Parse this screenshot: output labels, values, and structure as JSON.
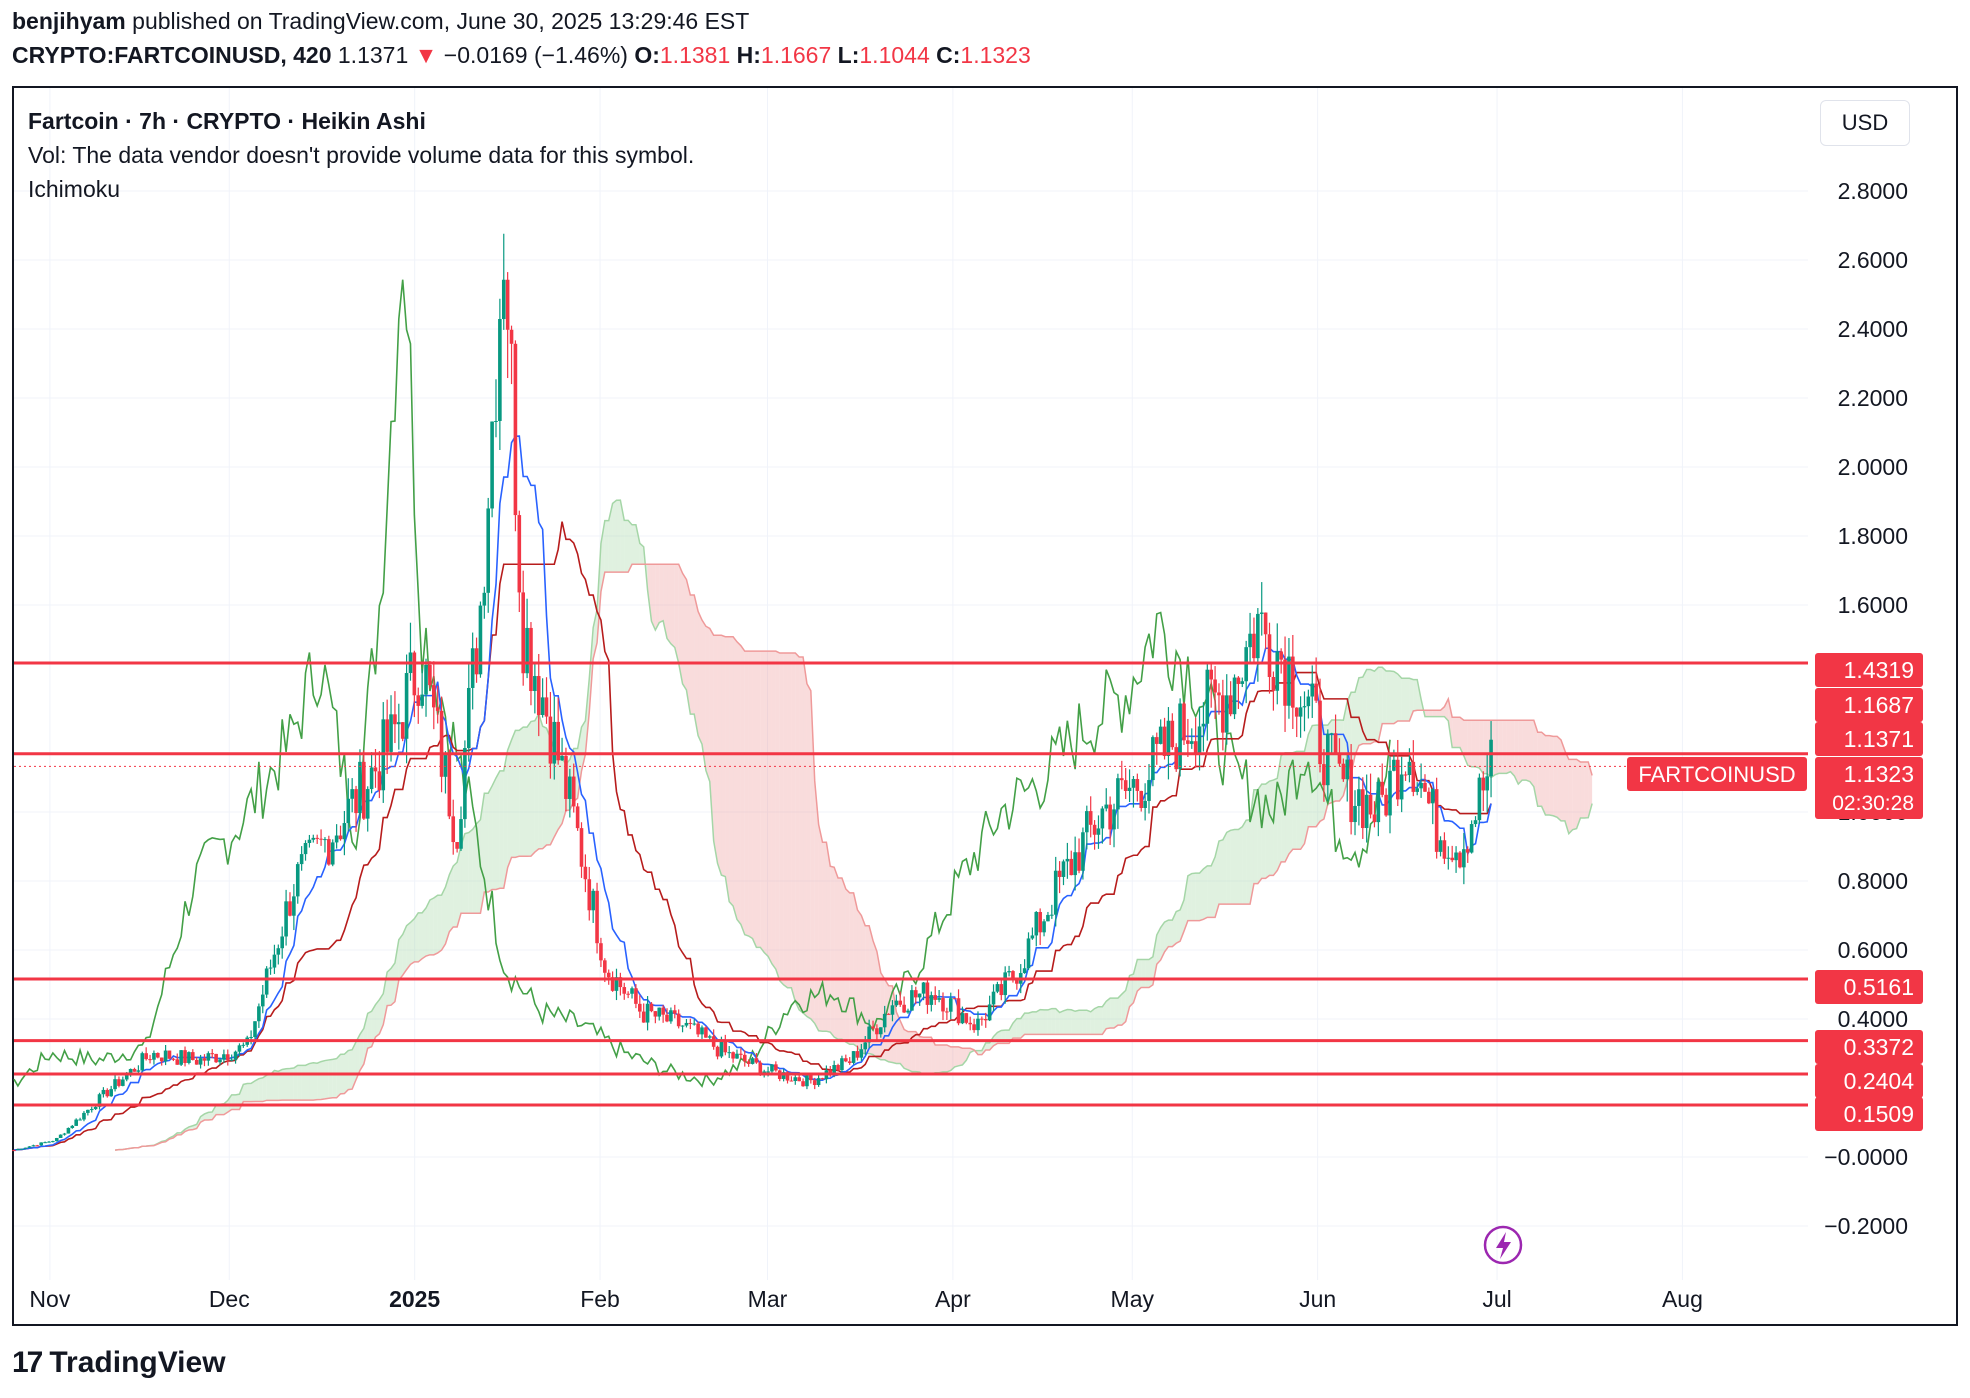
{
  "header": {
    "author": "benjihyam",
    "published_text": "published on TradingView.com, June 30, 2025 13:29:46 EST",
    "symbol": "CRYPTO:FARTCOINUSD, 420",
    "last": "1.1371",
    "change_arrow": "▼",
    "change": "−0.0169 (−1.46%)",
    "o_label": "O:",
    "o_value": "1.1381",
    "h_label": "H:",
    "h_value": "1.1667",
    "l_label": "L:",
    "l_value": "1.1044",
    "c_label": "C:",
    "c_value": "1.1323"
  },
  "legend": {
    "title": "Fartcoin · 7h · CRYPTO · Heikin Ashi",
    "vol": "Vol: The data vendor doesn't provide volume data for this symbol.",
    "indicator": "Ichimoku"
  },
  "currency_button": "USD",
  "footer": {
    "logo_mark": "17",
    "logo_text": "TradingView"
  },
  "colors": {
    "up": "#089981",
    "down": "#f23645",
    "tenkan": "#2962ff",
    "kijun": "#b71c1c",
    "chikou": "#43a047",
    "cloud_up": "#a5d6a7",
    "cloud_down": "#ef9a9a",
    "level_line": "#f23645",
    "grid": "#f0f3fa",
    "action_icon": "#9c27b0"
  },
  "action_icon": "lightning-icon",
  "chart_data": {
    "type": "candlestick",
    "title": "Fartcoin · 7h · CRYPTO · Heikin Ashi",
    "indicator": "Ichimoku",
    "x_axis_labels": [
      "Nov",
      "Dec",
      "2025",
      "Feb",
      "Mar",
      "Apr",
      "May",
      "Jun",
      "Jul",
      "Aug"
    ],
    "x_axis_bold": [
      "2025"
    ],
    "x_range": [
      "2024-10-26",
      "2025-08-22"
    ],
    "y_ticks": [
      "2.8000",
      "2.6000",
      "2.4000",
      "2.2000",
      "2.0000",
      "1.8000",
      "1.6000",
      "1.0000",
      "0.8000",
      "0.6000",
      "0.4000",
      "−0.0000",
      "−0.2000"
    ],
    "ylim": [
      -0.3,
      3.0
    ],
    "grid": true,
    "horizontal_levels": [
      1.4319,
      1.1687,
      0.5161,
      0.3372,
      0.2404,
      0.1509
    ],
    "level_labels": [
      "1.4319",
      "1.1687",
      "0.5161",
      "0.3372",
      "0.2404",
      "0.1509"
    ],
    "last_price_line": 1.1323,
    "price_label": {
      "symbol": "FARTCOINUSD",
      "values": [
        "1.1371",
        "1.1323"
      ],
      "countdown": "02:30:28"
    },
    "series": [
      {
        "name": "close",
        "dates": [
          "2024-10-26",
          "2024-11-02",
          "2024-11-10",
          "2024-11-18",
          "2024-11-26",
          "2024-12-04",
          "2024-12-12",
          "2024-12-20",
          "2024-12-28",
          "2025-01-02",
          "2025-01-08",
          "2025-01-12",
          "2025-01-16",
          "2025-01-19",
          "2025-01-23",
          "2025-01-28",
          "2025-02-02",
          "2025-02-08",
          "2025-02-15",
          "2025-02-22",
          "2025-03-01",
          "2025-03-08",
          "2025-03-15",
          "2025-03-22",
          "2025-03-29",
          "2025-04-05",
          "2025-04-12",
          "2025-04-19",
          "2025-04-26",
          "2025-05-03",
          "2025-05-10",
          "2025-05-17",
          "2025-05-22",
          "2025-05-28",
          "2025-06-04",
          "2025-06-11",
          "2025-06-16",
          "2025-06-21",
          "2025-06-25",
          "2025-06-30"
        ],
        "values": [
          0.02,
          0.05,
          0.18,
          0.3,
          0.28,
          0.32,
          0.8,
          0.98,
          1.2,
          1.45,
          0.95,
          1.6,
          2.7,
          1.55,
          1.3,
          0.95,
          0.55,
          0.42,
          0.38,
          0.3,
          0.25,
          0.22,
          0.28,
          0.45,
          0.48,
          0.38,
          0.55,
          0.8,
          1.0,
          1.1,
          1.25,
          1.35,
          1.55,
          1.4,
          1.1,
          1.0,
          1.2,
          0.95,
          0.9,
          1.13
        ]
      }
    ]
  }
}
